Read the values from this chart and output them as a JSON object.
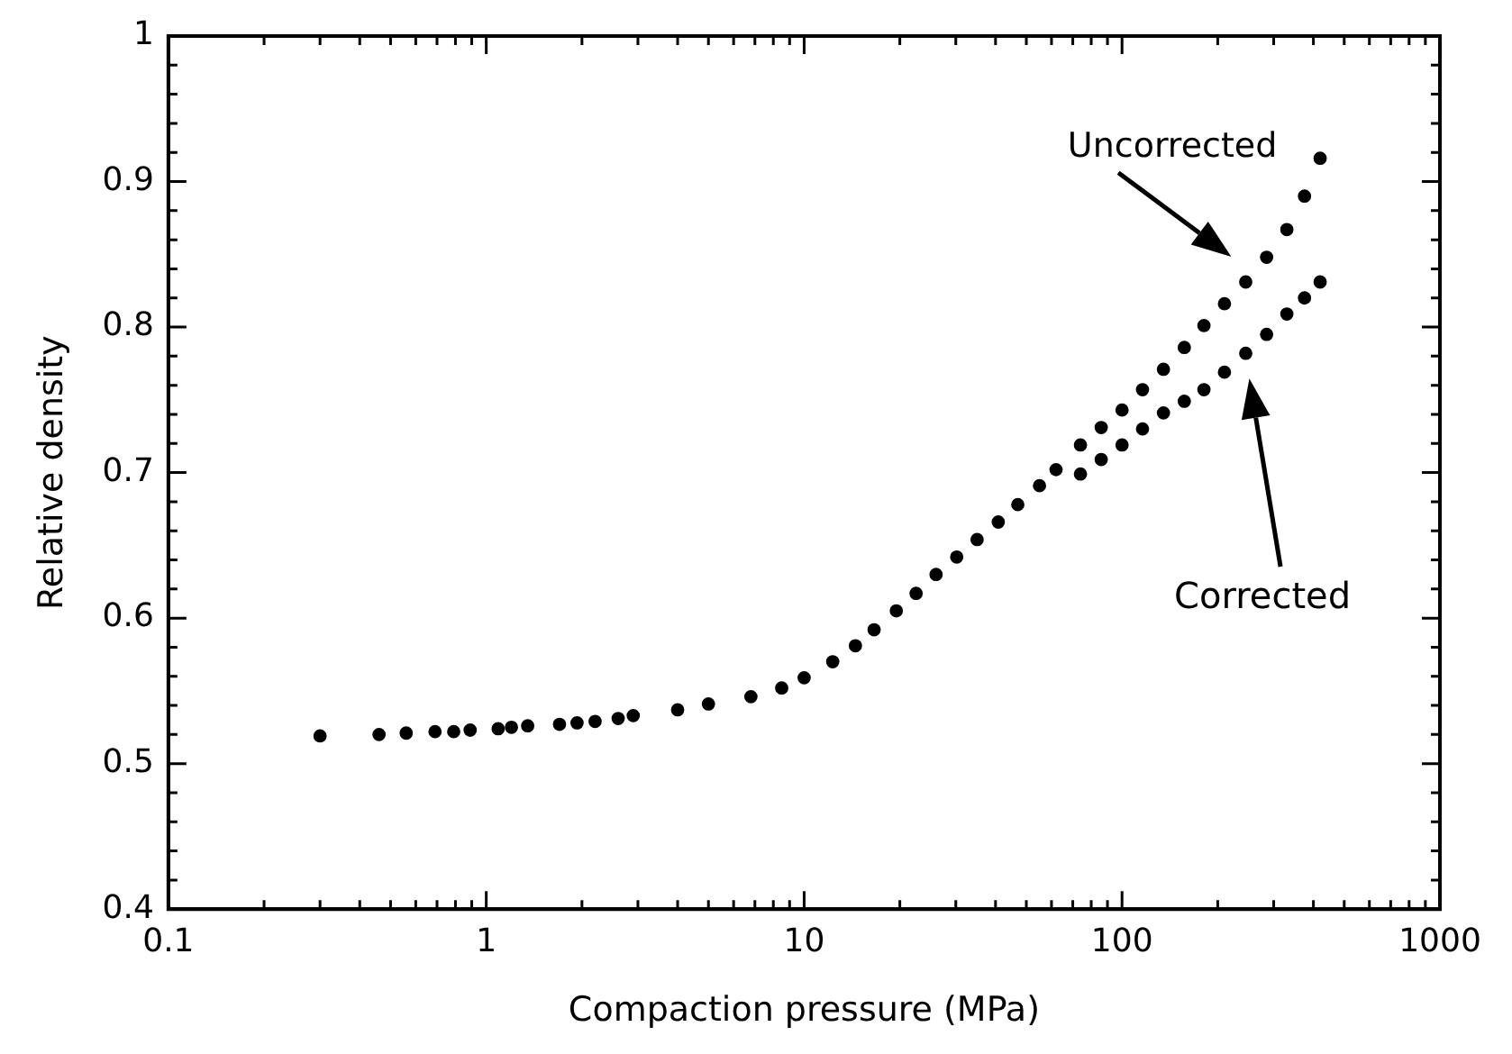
{
  "chart_data": {
    "type": "scatter",
    "xlabel": "Compaction pressure (MPa)",
    "ylabel": "Relative density",
    "log": "x",
    "grid": false,
    "marker": "circle",
    "xlim": [
      0.1,
      1000
    ],
    "ylim": [
      0.4,
      1
    ],
    "xticks": [
      0.1,
      {
        "value": 0.2,
        "label": null
      },
      {
        "value": 0.3,
        "label": null
      },
      {
        "value": 0.4,
        "label": null
      },
      {
        "value": 0.5,
        "label": null
      },
      {
        "value": 0.6,
        "label": null
      },
      {
        "value": 0.7,
        "label": null
      },
      {
        "value": 0.8,
        "label": null
      },
      {
        "value": 0.9,
        "label": null
      },
      1,
      {
        "value": 2,
        "label": null
      },
      {
        "value": 3,
        "label": null
      },
      {
        "value": 4,
        "label": null
      },
      {
        "value": 5,
        "label": null
      },
      {
        "value": 6,
        "label": null
      },
      {
        "value": 7,
        "label": null
      },
      {
        "value": 8,
        "label": null
      },
      {
        "value": 9,
        "label": null
      },
      10,
      {
        "value": 20,
        "label": null
      },
      {
        "value": 30,
        "label": null
      },
      {
        "value": 40,
        "label": null
      },
      {
        "value": 50,
        "label": null
      },
      {
        "value": 60,
        "label": null
      },
      {
        "value": 70,
        "label": null
      },
      {
        "value": 80,
        "label": null
      },
      {
        "value": 90,
        "label": null
      },
      100,
      {
        "value": 200,
        "label": null
      },
      {
        "value": 300,
        "label": null
      },
      {
        "value": 400,
        "label": null
      },
      {
        "value": 500,
        "label": null
      },
      {
        "value": 600,
        "label": null
      },
      {
        "value": 700,
        "label": null
      },
      {
        "value": 800,
        "label": null
      },
      {
        "value": 900,
        "label": null
      },
      1000
    ],
    "yticks": [
      0.4,
      {
        "value": 0.42,
        "label": null
      },
      {
        "value": 0.44,
        "label": null
      },
      {
        "value": 0.46,
        "label": null
      },
      {
        "value": 0.48,
        "label": null
      },
      0.5,
      {
        "value": 0.52,
        "label": null
      },
      {
        "value": 0.54,
        "label": null
      },
      {
        "value": 0.56,
        "label": null
      },
      {
        "value": 0.58,
        "label": null
      },
      0.6,
      {
        "value": 0.62,
        "label": null
      },
      {
        "value": 0.64,
        "label": null
      },
      {
        "value": 0.66,
        "label": null
      },
      {
        "value": 0.68,
        "label": null
      },
      0.7,
      {
        "value": 0.72,
        "label": null
      },
      {
        "value": 0.74,
        "label": null
      },
      {
        "value": 0.76,
        "label": null
      },
      {
        "value": 0.78,
        "label": null
      },
      0.8,
      {
        "value": 0.82,
        "label": null
      },
      {
        "value": 0.84,
        "label": null
      },
      {
        "value": 0.86,
        "label": null
      },
      {
        "value": 0.88,
        "label": null
      },
      0.9,
      {
        "value": 0.92,
        "label": null
      },
      {
        "value": 0.94,
        "label": null
      },
      {
        "value": 0.96,
        "label": null
      },
      {
        "value": 0.98,
        "label": null
      },
      1
    ],
    "series": [
      {
        "name": "Uncorrected",
        "color": "#000000",
        "x": [
          0.3,
          0.46,
          0.56,
          0.69,
          0.79,
          0.89,
          1.09,
          1.2,
          1.35,
          1.7,
          1.93,
          2.2,
          2.6,
          2.9,
          4,
          5,
          6.8,
          8.5,
          10,
          12.3,
          14.5,
          16.6,
          19.5,
          22.5,
          26,
          30.2,
          35,
          40.8,
          47,
          55,
          62,
          74,
          86,
          100,
          116,
          135,
          157,
          181,
          210,
          245,
          285,
          330,
          375,
          420
        ],
        "values": [
          0.519,
          0.52,
          0.521,
          0.522,
          0.522,
          0.523,
          0.524,
          0.525,
          0.526,
          0.527,
          0.528,
          0.529,
          0.531,
          0.533,
          0.537,
          0.541,
          0.546,
          0.552,
          0.559,
          0.57,
          0.581,
          0.592,
          0.605,
          0.617,
          0.63,
          0.642,
          0.654,
          0.666,
          0.678,
          0.691,
          0.702,
          0.719,
          0.731,
          0.743,
          0.757,
          0.771,
          0.786,
          0.801,
          0.816,
          0.831,
          0.848,
          0.867,
          0.89,
          0.916
        ]
      },
      {
        "name": "Corrected",
        "color": "#000000",
        "x": [
          74,
          86,
          100,
          116,
          135,
          157,
          181,
          210,
          245,
          285,
          330,
          375,
          420
        ],
        "values": [
          0.699,
          0.709,
          0.719,
          0.73,
          0.741,
          0.749,
          0.757,
          0.769,
          0.782,
          0.795,
          0.809,
          0.82,
          0.831
        ]
      }
    ]
  }
}
